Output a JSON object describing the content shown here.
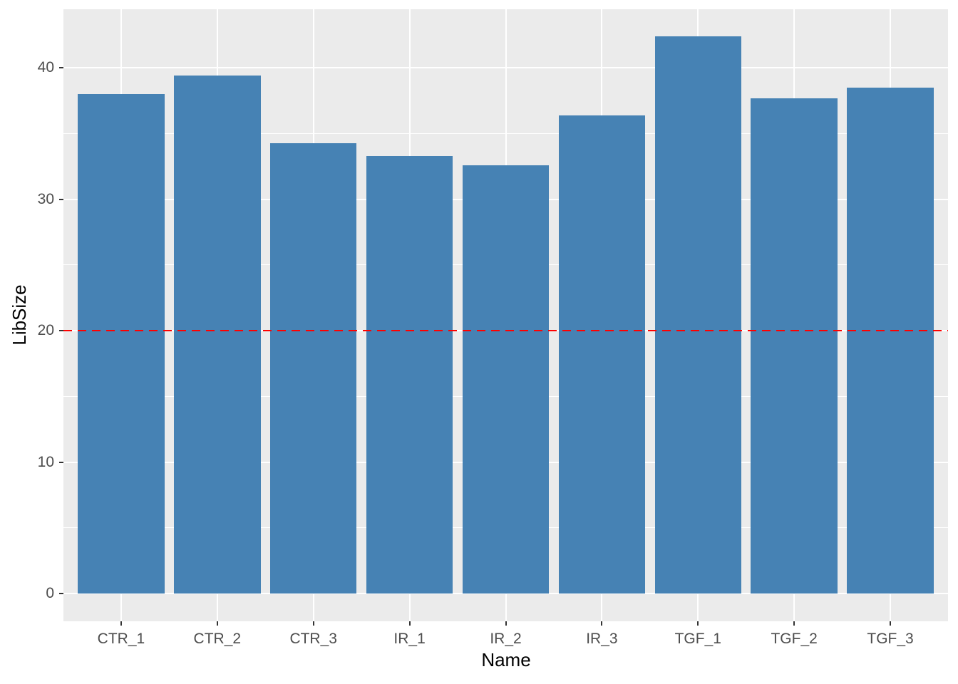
{
  "chart_data": {
    "type": "bar",
    "title": "",
    "xlabel": "Name",
    "ylabel": "LibSize",
    "categories": [
      "CTR_1",
      "CTR_2",
      "CTR_3",
      "IR_1",
      "IR_2",
      "IR_3",
      "TGF_1",
      "TGF_2",
      "TGF_3"
    ],
    "values": [
      38.0,
      39.4,
      34.3,
      33.3,
      32.6,
      36.4,
      42.4,
      37.7,
      38.5
    ],
    "y_ticks": [
      0,
      10,
      20,
      30,
      40
    ],
    "y_tick_labels": [
      "0",
      "10",
      "20",
      "30",
      "40"
    ],
    "y_minor_ticks": [
      5,
      15,
      25,
      35
    ],
    "ylim": [
      -2.12,
      44.47
    ],
    "reference_line": {
      "y": 20,
      "color": "#FF0000",
      "style": "dashed"
    },
    "bar_color": "#4682B4",
    "panel_background": "#EBEBEB",
    "grid_color": "#FFFFFF",
    "grid": true,
    "legend_position": "none",
    "tick_label_color": "#4D4D4D",
    "tick_mark_color": "#333333",
    "axis_title_color": "#000000"
  }
}
